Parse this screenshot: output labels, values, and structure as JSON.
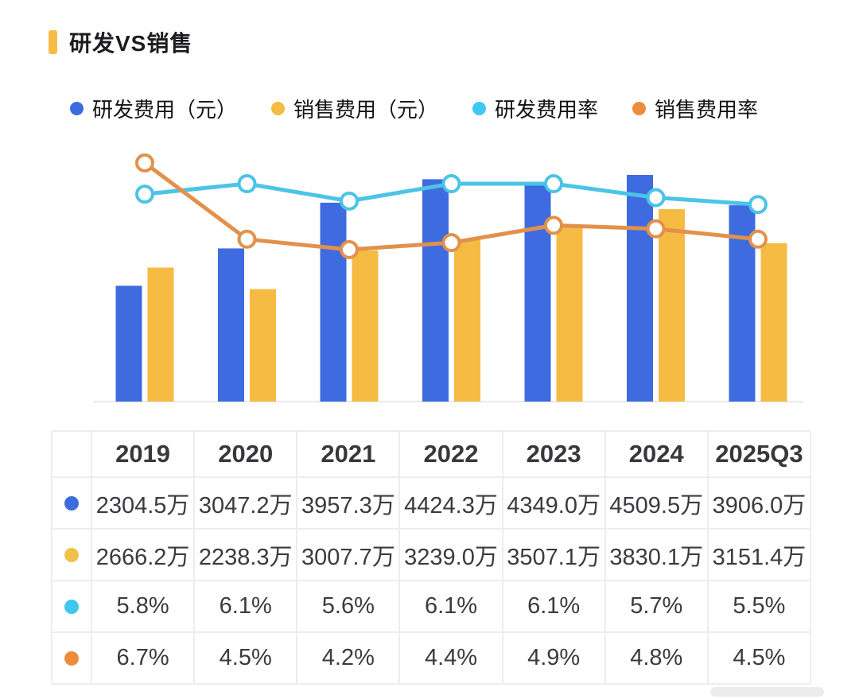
{
  "title": {
    "text": "研发VS销售",
    "marker_color": "#F6BC45"
  },
  "legend": {
    "items": [
      {
        "label": "研发费用（元）",
        "color": "#3D6BDF"
      },
      {
        "label": "销售费用（元）",
        "color": "#F6BB42"
      },
      {
        "label": "研发费用率",
        "color": "#3EC7F0"
      },
      {
        "label": "销售费用率",
        "color": "#ED8C3B"
      }
    ]
  },
  "chart_data": {
    "type": "combo-bar-line",
    "title": "研发VS销售",
    "categories": [
      "2019",
      "2020",
      "2021",
      "2022",
      "2023",
      "2024",
      "2025Q3"
    ],
    "series": [
      {
        "name": "研发费用（元）",
        "kind": "bar",
        "axis": "amount",
        "unit": "万",
        "color": "#3E6BE0",
        "values": [
          2304.5,
          3047.2,
          3957.3,
          4424.3,
          4349.0,
          4509.5,
          3906.0
        ]
      },
      {
        "name": "销售费用（元）",
        "kind": "bar",
        "axis": "amount",
        "unit": "万",
        "color": "#F6BB42",
        "values": [
          2666.2,
          2238.3,
          3007.7,
          3239.0,
          3507.1,
          3830.1,
          3151.4
        ]
      },
      {
        "name": "研发费用率",
        "kind": "line",
        "axis": "percent",
        "unit": "%",
        "color": "#4BC4E6",
        "marker": "open-circle",
        "values": [
          5.8,
          6.1,
          5.6,
          6.1,
          6.1,
          5.7,
          5.5
        ]
      },
      {
        "name": "销售费用率",
        "kind": "line",
        "axis": "percent",
        "unit": "%",
        "color": "#E2914C",
        "marker": "open-circle",
        "values": [
          6.7,
          4.5,
          4.2,
          4.4,
          4.9,
          4.8,
          4.5
        ]
      }
    ],
    "amount_axis": {
      "min": 0,
      "max": 4700,
      "labels_visible": false
    },
    "percent_axis": {
      "min": 0,
      "max": 7.3,
      "labels_visible": false
    },
    "grid": false,
    "legend_position": "top"
  },
  "table": {
    "columns": [
      "2019",
      "2020",
      "2021",
      "2022",
      "2023",
      "2024",
      "2025Q3"
    ],
    "rows": [
      {
        "series": "研发费用（元）",
        "dot_color": "#3D6BDF",
        "values": [
          "2304.5万",
          "3047.2万",
          "3957.3万",
          "4424.3万",
          "4349.0万",
          "4509.5万",
          "3906.0万"
        ]
      },
      {
        "series": "销售费用（元）",
        "dot_color": "#F0C14A",
        "values": [
          "2666.2万",
          "2238.3万",
          "3007.7万",
          "3239.0万",
          "3507.1万",
          "3830.1万",
          "3151.4万"
        ]
      },
      {
        "series": "研发费用率",
        "dot_color": "#3EC7F0",
        "values": [
          "5.8%",
          "6.1%",
          "5.6%",
          "6.1%",
          "6.1%",
          "5.7%",
          "5.5%"
        ]
      },
      {
        "series": "销售费用率",
        "dot_color": "#ED8C3B",
        "values": [
          "6.7%",
          "4.5%",
          "4.2%",
          "4.4%",
          "4.9%",
          "4.8%",
          "4.5%"
        ]
      }
    ]
  }
}
